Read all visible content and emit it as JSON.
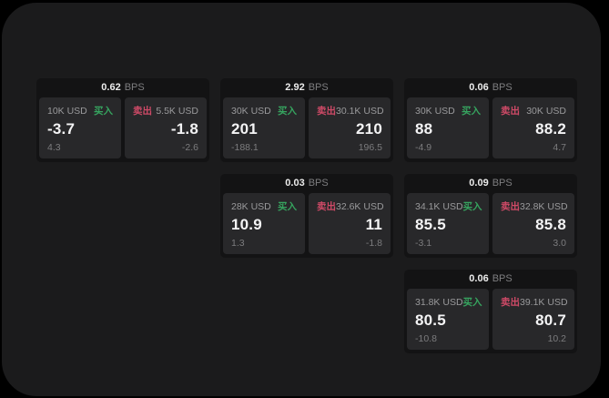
{
  "labels": {
    "buy": "买入",
    "sell": "卖出",
    "bps_suffix": "BPS"
  },
  "colors": {
    "buy_green": "#36a45f",
    "sell_red": "#cf4a67",
    "surface_bg": "#1b1b1c",
    "card_bg": "#131314",
    "panel_bg": "#28282a"
  },
  "cards": [
    {
      "bps": "0.62",
      "buy": {
        "amount": "10K USD",
        "value": "-3.7",
        "change": "4.3"
      },
      "sell": {
        "amount": "5.5K USD",
        "value": "-1.8",
        "change": "-2.6"
      }
    },
    {
      "bps": "2.92",
      "buy": {
        "amount": "30K USD",
        "value": "201",
        "change": "-188.1"
      },
      "sell": {
        "amount": "30.1K USD",
        "value": "210",
        "change": "196.5"
      }
    },
    {
      "bps": "0.06",
      "buy": {
        "amount": "30K USD",
        "value": "88",
        "change": "-4.9"
      },
      "sell": {
        "amount": "30K USD",
        "value": "88.2",
        "change": "4.7"
      }
    },
    {
      "bps": "0.03",
      "buy": {
        "amount": "28K USD",
        "value": "10.9",
        "change": "1.3"
      },
      "sell": {
        "amount": "32.6K USD",
        "value": "11",
        "change": "-1.8"
      }
    },
    {
      "bps": "0.09",
      "buy": {
        "amount": "34.1K USD",
        "value": "85.5",
        "change": "-3.1"
      },
      "sell": {
        "amount": "32.8K USD",
        "value": "85.8",
        "change": "3.0"
      }
    },
    {
      "bps": "0.06",
      "buy": {
        "amount": "31.8K USD",
        "value": "80.5",
        "change": "-10.8"
      },
      "sell": {
        "amount": "39.1K USD",
        "value": "80.7",
        "change": "10.2"
      }
    }
  ]
}
